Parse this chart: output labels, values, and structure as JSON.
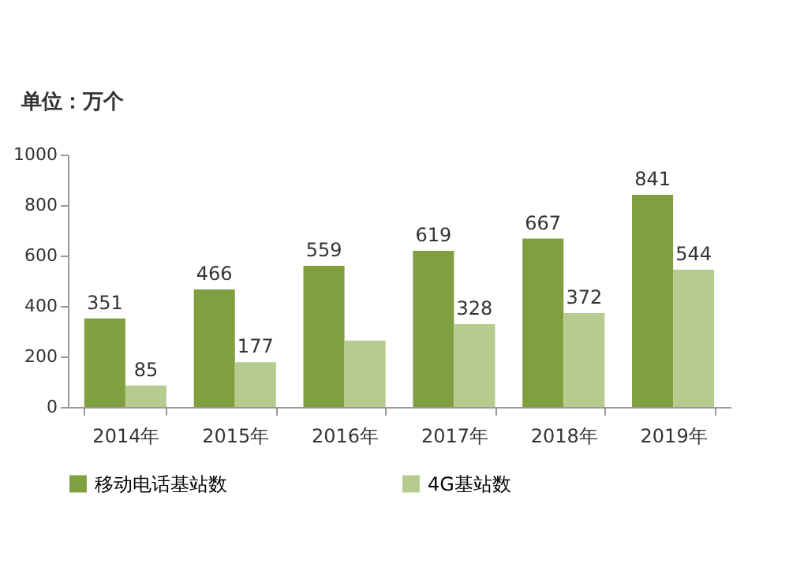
{
  "chart_data": {
    "type": "bar",
    "ylabel": "单位：万个",
    "categories": [
      "2014年",
      "2015年",
      "2016年",
      "2017年",
      "2018年",
      "2019年"
    ],
    "series": [
      {
        "name": "移动电话基站数",
        "color": "#80a040",
        "values": [
          351,
          466,
          559,
          619,
          667,
          841
        ],
        "value_labels": [
          "351",
          "466",
          "559",
          "619",
          "667",
          "841"
        ]
      },
      {
        "name": "4G基站数",
        "color": "#b6cc8f",
        "values": [
          85,
          177,
          263,
          328,
          372,
          544
        ],
        "value_labels": [
          "85",
          "177",
          null,
          "328",
          "372",
          "544"
        ]
      }
    ],
    "ylim": [
      0,
      1000
    ],
    "yticks": [
      0,
      200,
      400,
      600,
      800,
      1000
    ],
    "grid": false,
    "legend": "bottom"
  }
}
